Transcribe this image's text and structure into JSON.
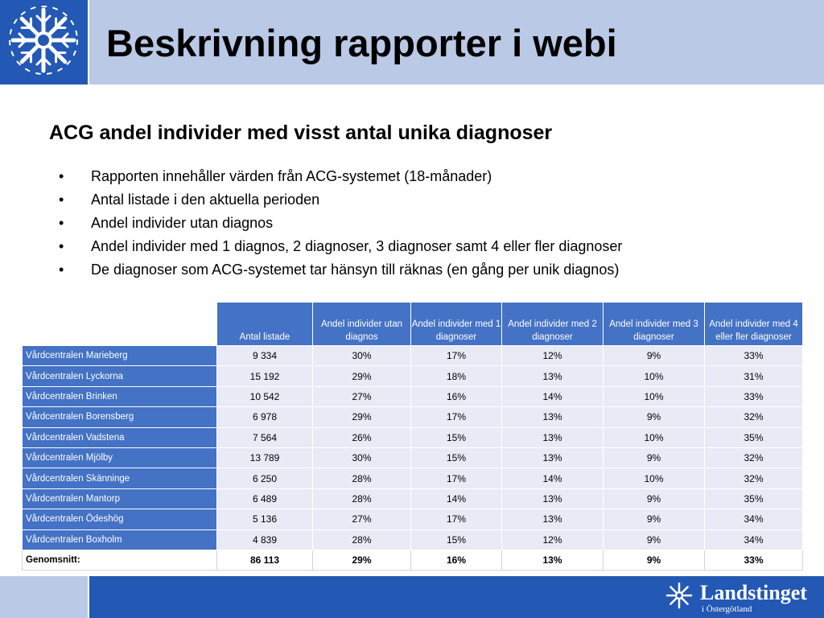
{
  "slide": {
    "title": "Beskrivning rapporter i webi",
    "subtitle": "ACG andel individer med visst antal unika diagnoser",
    "bullet_char": "•",
    "bullets": [
      "Rapporten innehåller värden från ACG-systemet (18-månader)",
      "Antal listade i den aktuella perioden",
      "Andel individer utan diagnos",
      "Andel individer med 1 diagnos, 2 diagnoser, 3 diagnoser samt 4 eller fler diagnoser",
      "De diagnoser som ACG-systemet tar hänsyn till räknas (en gång per unik diagnos)"
    ]
  },
  "table": {
    "headers": [
      "Antal listade",
      "Andel individer utan diagnos",
      "Andel individer med 1 diagnoser",
      "Andel individer med 2 diagnoser",
      "Andel individer med 3 diagnoser",
      "Andel individer med 4 eller fler diagnoser"
    ],
    "rows": [
      {
        "name": "Vårdcentralen Marieberg",
        "values": [
          "9 334",
          "30%",
          "17%",
          "12%",
          "9%",
          "33%"
        ]
      },
      {
        "name": "Vårdcentralen Lyckorna",
        "values": [
          "15 192",
          "29%",
          "18%",
          "13%",
          "10%",
          "31%"
        ]
      },
      {
        "name": "Vårdcentralen Brinken",
        "values": [
          "10 542",
          "27%",
          "16%",
          "14%",
          "10%",
          "33%"
        ]
      },
      {
        "name": "Vårdcentralen Borensberg",
        "values": [
          "6 978",
          "29%",
          "17%",
          "13%",
          "9%",
          "32%"
        ]
      },
      {
        "name": "Vårdcentralen Vadstena",
        "values": [
          "7 564",
          "26%",
          "15%",
          "13%",
          "10%",
          "35%"
        ]
      },
      {
        "name": "Vårdcentralen Mjölby",
        "values": [
          "13 789",
          "30%",
          "15%",
          "13%",
          "9%",
          "32%"
        ]
      },
      {
        "name": "Vårdcentralen Skänninge",
        "values": [
          "6 250",
          "28%",
          "17%",
          "14%",
          "10%",
          "32%"
        ]
      },
      {
        "name": "Vårdcentralen Mantorp",
        "values": [
          "6 489",
          "28%",
          "14%",
          "13%",
          "9%",
          "35%"
        ]
      },
      {
        "name": "Vårdcentralen Ödeshög",
        "values": [
          "5 136",
          "27%",
          "17%",
          "13%",
          "9%",
          "34%"
        ]
      },
      {
        "name": "Vårdcentralen Boxholm",
        "values": [
          "4 839",
          "28%",
          "15%",
          "12%",
          "9%",
          "34%"
        ]
      }
    ],
    "average": {
      "name": "Genomsnitt:",
      "values": [
        "86 113",
        "29%",
        "16%",
        "13%",
        "9%",
        "33%"
      ]
    }
  },
  "footer": {
    "org_name": "Landstinget",
    "org_region": "i Östergötland"
  },
  "colors": {
    "brand_blue": "#2358b4",
    "light_blue": "#b9c9e6",
    "table_header": "#4472c4",
    "table_cell": "#e8ebf5"
  },
  "icons": {
    "logo": "snowflake-crest-icon"
  }
}
